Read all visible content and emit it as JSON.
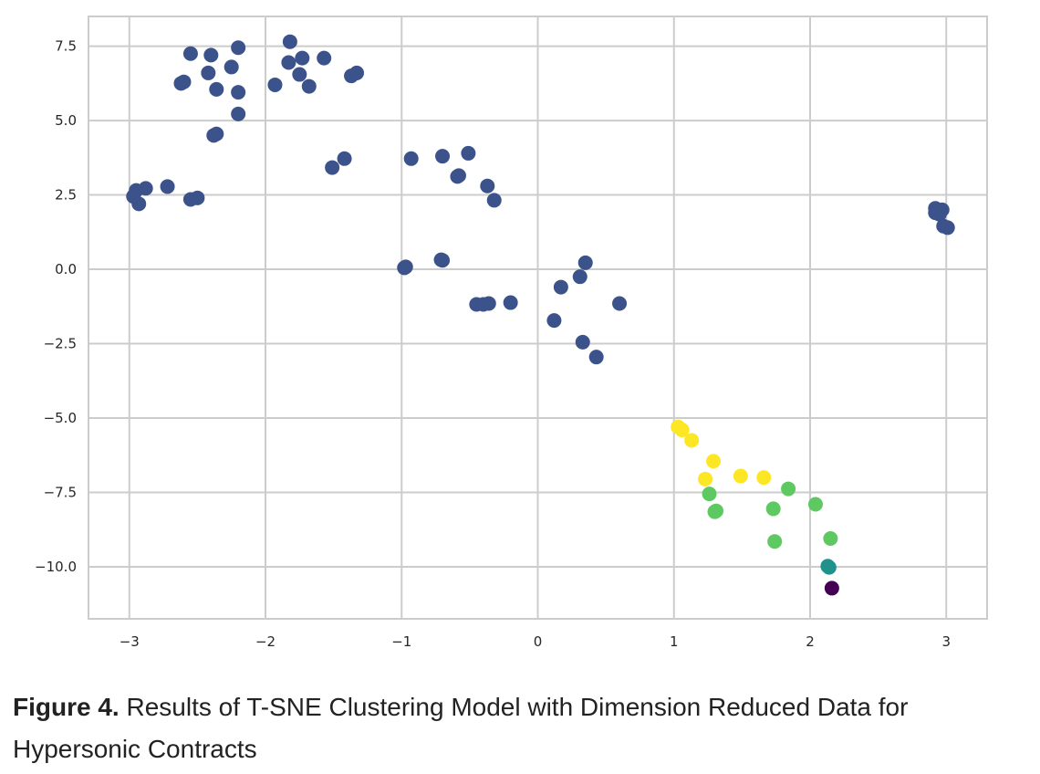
{
  "caption": {
    "label": "Figure 4.",
    "text": " Results of T-SNE Clustering Model with Dimension Reduced Data for Hypersonic Contracts"
  },
  "chart_data": {
    "type": "scatter",
    "title": "",
    "xlabel": "",
    "ylabel": "",
    "xlim": [
      -3.3,
      3.3
    ],
    "ylim": [
      -11.75,
      8.5
    ],
    "xticks": [
      -3,
      -2,
      -1,
      0,
      1,
      2,
      3
    ],
    "yticks": [
      7.5,
      5.0,
      2.5,
      0.0,
      -2.5,
      -5.0,
      -7.5,
      -10.0
    ],
    "xtick_labels": [
      "−3",
      "−2",
      "−1",
      "0",
      "1",
      "2",
      "3"
    ],
    "ytick_labels": [
      "7.5",
      "5.0",
      "2.5",
      "0.0",
      "−2.5",
      "−5.0",
      "−7.5",
      "−10.0"
    ],
    "grid": true,
    "series": [
      {
        "color": "#3b528b",
        "points": [
          [
            -2.55,
            7.25
          ],
          [
            -2.4,
            7.2
          ],
          [
            -2.2,
            7.45
          ],
          [
            -1.82,
            7.65
          ],
          [
            -1.73,
            7.1
          ],
          [
            -1.57,
            7.1
          ],
          [
            -1.83,
            6.95
          ],
          [
            -2.25,
            6.8
          ],
          [
            -2.42,
            6.6
          ],
          [
            -1.75,
            6.55
          ],
          [
            -1.37,
            6.5
          ],
          [
            -1.33,
            6.6
          ],
          [
            -2.6,
            6.3
          ],
          [
            -2.62,
            6.25
          ],
          [
            -1.93,
            6.2
          ],
          [
            -1.68,
            6.15
          ],
          [
            -2.36,
            6.05
          ],
          [
            -2.2,
            5.95
          ],
          [
            -2.2,
            5.22
          ],
          [
            -2.36,
            4.55
          ],
          [
            -2.38,
            4.5
          ],
          [
            -1.42,
            3.72
          ],
          [
            -1.51,
            3.42
          ],
          [
            -0.93,
            3.72
          ],
          [
            -0.7,
            3.8
          ],
          [
            -0.51,
            3.9
          ],
          [
            -0.59,
            3.12
          ],
          [
            -0.58,
            3.15
          ],
          [
            -0.37,
            2.8
          ],
          [
            -0.32,
            2.32
          ],
          [
            -2.72,
            2.78
          ],
          [
            -2.88,
            2.72
          ],
          [
            -2.95,
            2.65
          ],
          [
            -2.97,
            2.45
          ],
          [
            -2.93,
            2.2
          ],
          [
            -2.55,
            2.35
          ],
          [
            -2.5,
            2.4
          ],
          [
            -0.98,
            0.05
          ],
          [
            -0.97,
            0.08
          ],
          [
            -0.7,
            0.3
          ],
          [
            -0.71,
            0.32
          ],
          [
            -0.45,
            -1.18
          ],
          [
            -0.4,
            -1.18
          ],
          [
            -0.36,
            -1.15
          ],
          [
            -0.2,
            -1.12
          ],
          [
            0.35,
            0.22
          ],
          [
            0.31,
            -0.25
          ],
          [
            0.17,
            -0.6
          ],
          [
            0.6,
            -1.15
          ],
          [
            0.12,
            -1.72
          ],
          [
            0.33,
            -2.45
          ],
          [
            0.43,
            -2.95
          ],
          [
            2.92,
            2.05
          ],
          [
            2.97,
            2.0
          ],
          [
            2.95,
            1.85
          ],
          [
            2.92,
            1.9
          ],
          [
            2.98,
            1.45
          ],
          [
            3.01,
            1.4
          ]
        ]
      },
      {
        "color": "#fde725",
        "points": [
          [
            1.03,
            -5.3
          ],
          [
            1.06,
            -5.4
          ],
          [
            1.13,
            -5.75
          ],
          [
            1.29,
            -6.45
          ],
          [
            1.49,
            -6.95
          ],
          [
            1.66,
            -7.0
          ],
          [
            1.23,
            -7.05
          ]
        ]
      },
      {
        "color": "#5ec962",
        "points": [
          [
            1.26,
            -7.55
          ],
          [
            1.31,
            -8.12
          ],
          [
            1.3,
            -8.15
          ],
          [
            1.73,
            -8.05
          ],
          [
            1.84,
            -7.38
          ],
          [
            2.04,
            -7.9
          ],
          [
            1.74,
            -9.15
          ],
          [
            2.15,
            -9.05
          ]
        ]
      },
      {
        "color": "#21918c",
        "points": [
          [
            2.13,
            -9.98
          ],
          [
            2.14,
            -10.02
          ]
        ]
      },
      {
        "color": "#440154",
        "points": [
          [
            2.16,
            -10.72
          ]
        ]
      }
    ]
  }
}
